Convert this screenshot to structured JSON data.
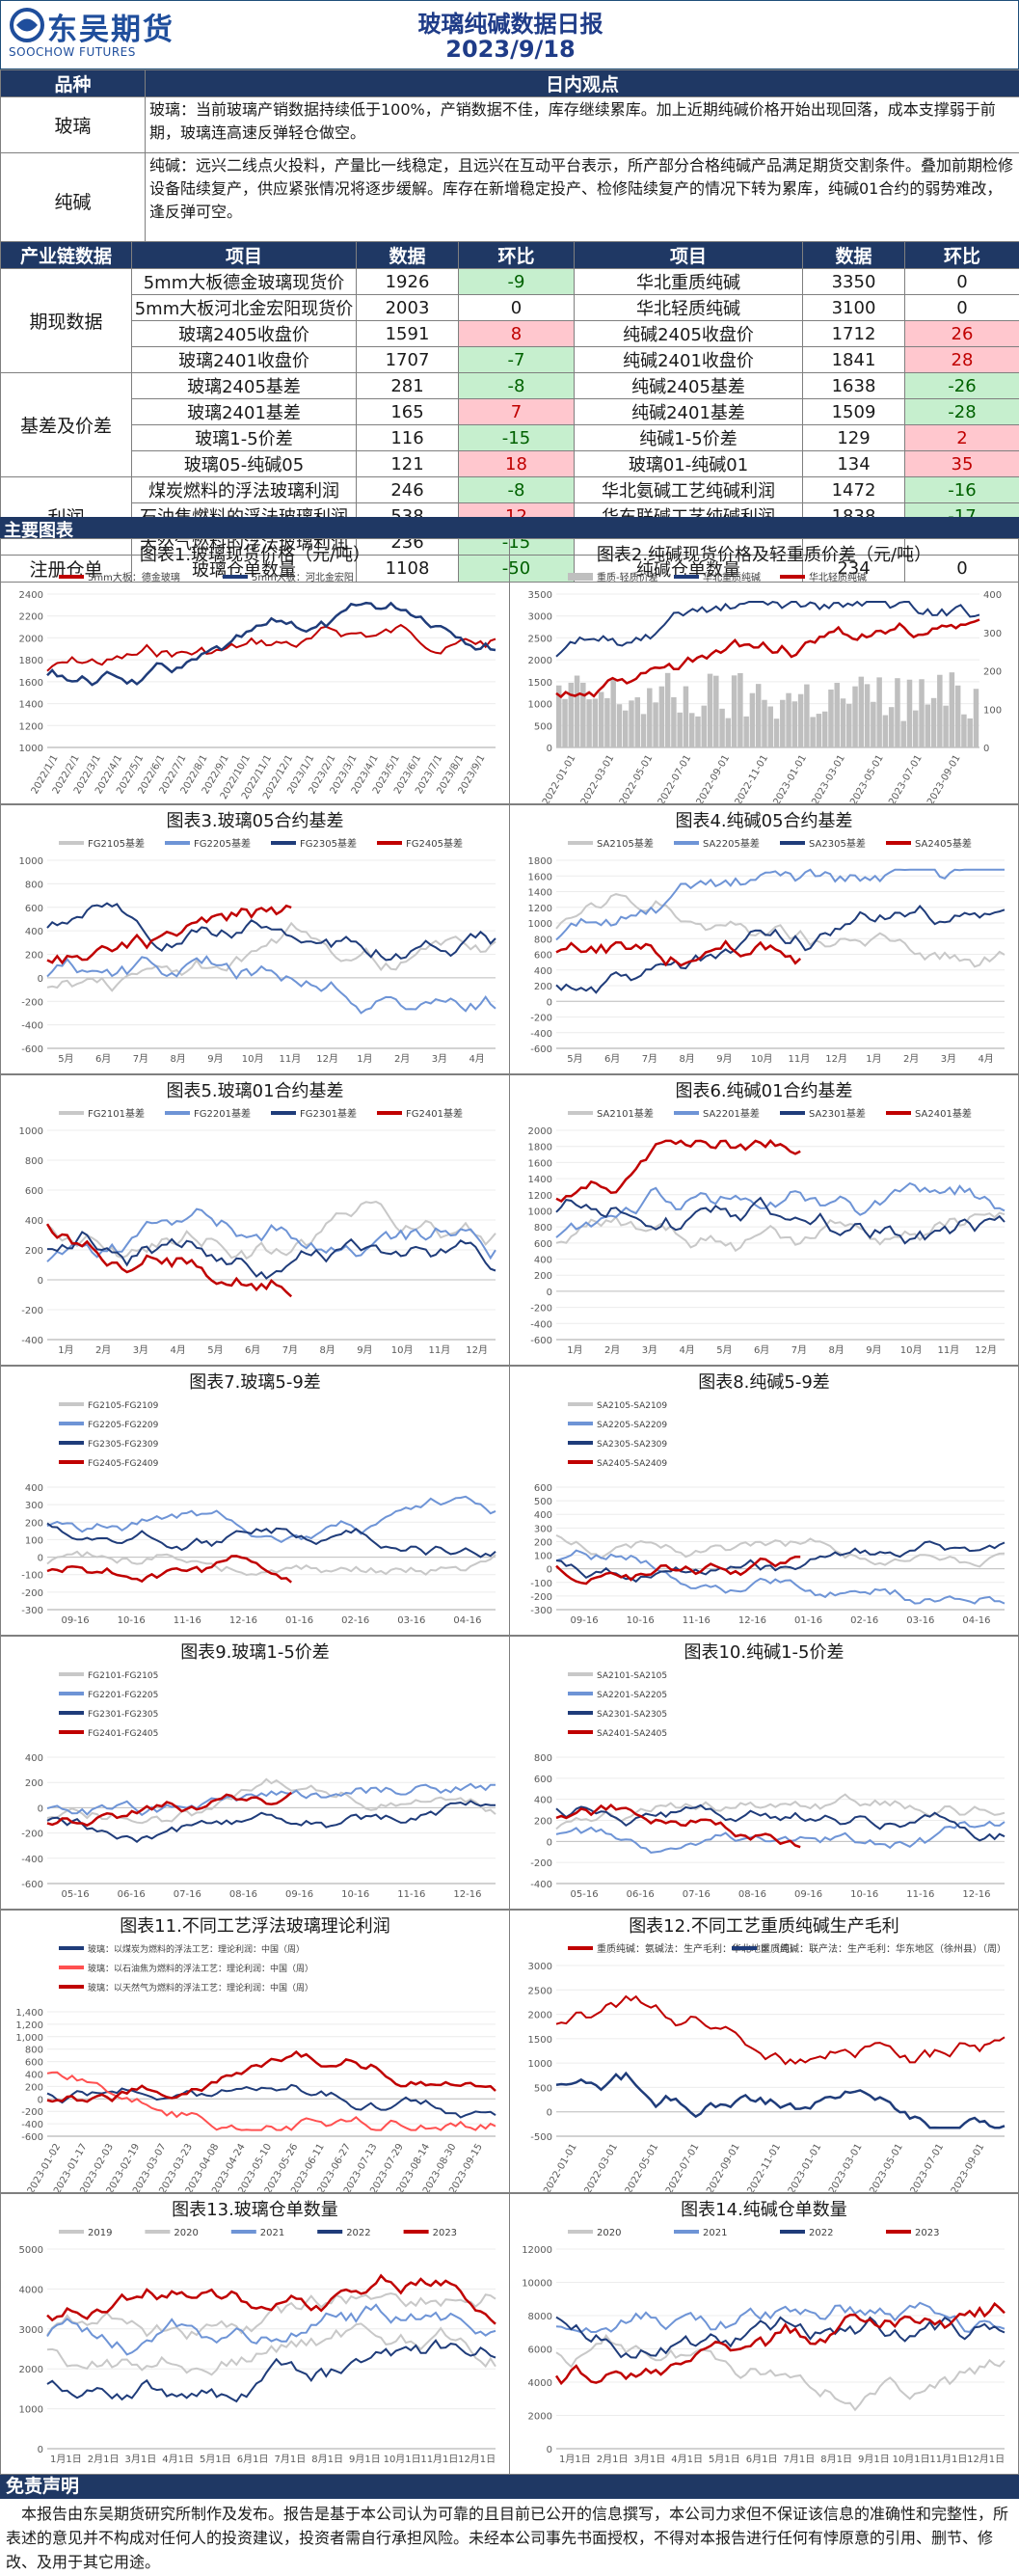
{
  "header": {
    "logo_cn": "东吴期货",
    "logo_en": "SOOCHOW FUTURES",
    "title": "玻璃纯碱数据日报",
    "date": "2023/9/18",
    "logo_color": "#1f4e9c",
    "title_color": "#1f3c88"
  },
  "views": {
    "col_product": "品种",
    "col_view": "日内观点",
    "glass_label": "玻璃",
    "glass_text": "玻璃：当前玻璃产销数据持续低于100%，产销数据不佳，库存继续累库。加上近期纯碱价格开始出现回落，成本支撑弱于前期，玻璃连高速反弹轻仓做空。",
    "soda_label": "纯碱",
    "soda_text": "纯碱：远兴二线点火投料，产量比一线稳定，且远兴在互动平台表示，所产部分合格纯碱产品满足期货交割条件。叠加前期检修设备陆续复产，供应紧张情况将逐步缓解。库存在新增稳定投产、检修陆续复产的情况下转为累库，纯碱01合约的弱势难改，逢反弹可空。"
  },
  "metrics": {
    "headers": [
      "产业链数据",
      "项目",
      "数据",
      "环比",
      "项目",
      "数据",
      "环比"
    ],
    "groups": [
      {
        "name": "期现数据",
        "rows": [
          {
            "l": "5mm大板德金玻璃现货价",
            "lv": "1926",
            "lc": "-9",
            "lcc": "g",
            "r": "华北重质纯碱",
            "rv": "3350",
            "rc": "0",
            "rcc": ""
          },
          {
            "l": "5mm大板河北金宏阳现货价",
            "lv": "2003",
            "lc": "0",
            "lcc": "",
            "r": "华北轻质纯碱",
            "rv": "3100",
            "rc": "0",
            "rcc": ""
          },
          {
            "l": "玻璃2405收盘价",
            "lv": "1591",
            "lc": "8",
            "lcc": "r",
            "r": "纯碱2405收盘价",
            "rv": "1712",
            "rc": "26",
            "rcc": "r"
          },
          {
            "l": "玻璃2401收盘价",
            "lv": "1707",
            "lc": "-7",
            "lcc": "g",
            "r": "纯碱2401收盘价",
            "rv": "1841",
            "rc": "28",
            "rcc": "r"
          }
        ]
      },
      {
        "name": "基差及价差",
        "rows": [
          {
            "l": "玻璃2405基差",
            "lv": "281",
            "lc": "-8",
            "lcc": "g",
            "r": "纯碱2405基差",
            "rv": "1638",
            "rc": "-26",
            "rcc": "g"
          },
          {
            "l": "玻璃2401基差",
            "lv": "165",
            "lc": "7",
            "lcc": "r",
            "r": "纯碱2401基差",
            "rv": "1509",
            "rc": "-28",
            "rcc": "g"
          },
          {
            "l": "玻璃1-5价差",
            "lv": "116",
            "lc": "-15",
            "lcc": "g",
            "r": "纯碱1-5价差",
            "rv": "129",
            "rc": "2",
            "rcc": "r"
          },
          {
            "l": "玻璃05-纯碱05",
            "lv": "121",
            "lc": "18",
            "lcc": "r",
            "r": "玻璃01-纯碱01",
            "rv": "134",
            "rc": "35",
            "rcc": "r"
          }
        ]
      },
      {
        "name": "利润",
        "rows": [
          {
            "l": "煤炭燃料的浮法玻璃利润",
            "lv": "246",
            "lc": "-8",
            "lcc": "g",
            "r": "华北氨碱工艺纯碱利润",
            "rv": "1472",
            "rc": "-16",
            "rcc": "g"
          },
          {
            "l": "石油焦燃料的浮法玻璃利润",
            "lv": "538",
            "lc": "12",
            "lcc": "r",
            "r": "华东联碱工艺纯碱利润",
            "rv": "1838",
            "rc": "-17",
            "rcc": "g"
          },
          {
            "l": "天然气燃料的浮法玻璃利润",
            "lv": "236",
            "lc": "-15",
            "lcc": "g",
            "r": "",
            "rv": "",
            "rc": "",
            "rcc": ""
          }
        ]
      },
      {
        "name": "注册仓单",
        "rows": [
          {
            "l": "玻璃仓单数量",
            "lv": "1108",
            "lc": "-50",
            "lcc": "g",
            "r": "纯碱仓单数量",
            "rv": "234",
            "rc": "0",
            "rcc": ""
          }
        ]
      }
    ]
  },
  "section_charts": "主要图表",
  "charts": [
    {
      "title": "图表1.玻璃现货价格（元/吨）",
      "legend": [
        "5mm大板：德金玻璃",
        "5mm大板：河北金宏阳"
      ],
      "colors": [
        "#c00000",
        "#1f3c7a"
      ],
      "yticks": [
        "2400",
        "2200",
        "2000",
        "1800",
        "1600",
        "1400",
        "1200",
        "1000"
      ],
      "xticks": [
        "2022/1/1",
        "2022/2/1",
        "2022/3/1",
        "2022/4/1",
        "2022/5/1",
        "2022/6/1",
        "2022/7/1",
        "2022/8/1",
        "2022/9/1",
        "2022/10/1",
        "2022/11/1",
        "2022/12/1",
        "2023/1/1",
        "2023/2/1",
        "2023/3/1",
        "2023/4/1",
        "2023/5/1",
        "2023/6/1",
        "2023/7/1",
        "2023/8/1",
        "2023/9/1"
      ]
    },
    {
      "title": "图表2.纯碱现货价格及轻重质价差（元/吨）",
      "legend": [
        "重质-轻质价差",
        "华北重质纯碱",
        "华北轻质纯碱"
      ],
      "colors": [
        "#bfbfbf",
        "#1f3c7a",
        "#c00000"
      ],
      "yticks": [
        "3500",
        "3000",
        "2500",
        "2000",
        "1500",
        "1000",
        "500",
        "0"
      ],
      "y2ticks": [
        "400",
        "300",
        "200",
        "100",
        "0"
      ],
      "xticks": [
        "2022-01-01",
        "2022-03-01",
        "2022-05-01",
        "2022-07-01",
        "2022-09-01",
        "2022-11-01",
        "2023-01-01",
        "2023-03-01",
        "2023-05-01",
        "2023-07-01",
        "2023-09-01"
      ]
    },
    {
      "title": "图表3.玻璃05合约基差",
      "legend": [
        "FG2105基差",
        "FG2205基差",
        "FG2305基差",
        "FG2405基差"
      ],
      "colors": [
        "#c8c8c8",
        "#6e94d6",
        "#1f3c7a",
        "#c00000"
      ],
      "yticks": [
        "1000",
        "800",
        "600",
        "400",
        "200",
        "0",
        "-200",
        "-400",
        "-600"
      ],
      "xticks": [
        "5月",
        "6月",
        "7月",
        "8月",
        "9月",
        "10月",
        "11月",
        "12月",
        "1月",
        "2月",
        "3月",
        "4月"
      ]
    },
    {
      "title": "图表4.纯碱05合约基差",
      "legend": [
        "SA2105基差",
        "SA2205基差",
        "SA2305基差",
        "SA2405基差"
      ],
      "colors": [
        "#c8c8c8",
        "#6e94d6",
        "#1f3c7a",
        "#c00000"
      ],
      "yticks": [
        "1800",
        "1600",
        "1400",
        "1200",
        "1000",
        "800",
        "600",
        "400",
        "200",
        "0",
        "-200",
        "-400",
        "-600"
      ],
      "xticks": [
        "5月",
        "6月",
        "7月",
        "8月",
        "9月",
        "10月",
        "11月",
        "12月",
        "1月",
        "2月",
        "3月",
        "4月"
      ]
    },
    {
      "title": "图表5.玻璃01合约基差",
      "legend": [
        "FG2101基差",
        "FG2201基差",
        "FG2301基差",
        "FG2401基差"
      ],
      "colors": [
        "#c8c8c8",
        "#6e94d6",
        "#1f3c7a",
        "#c00000"
      ],
      "yticks": [
        "1000",
        "800",
        "600",
        "400",
        "200",
        "0",
        "-200",
        "-400"
      ],
      "xticks": [
        "1月",
        "2月",
        "3月",
        "4月",
        "5月",
        "6月",
        "7月",
        "8月",
        "9月",
        "10月",
        "11月",
        "12月"
      ]
    },
    {
      "title": "图表6.纯碱01合约基差",
      "legend": [
        "SA2101基差",
        "SA2201基差",
        "SA2301基差",
        "SA2401基差"
      ],
      "colors": [
        "#c8c8c8",
        "#6e94d6",
        "#1f3c7a",
        "#c00000"
      ],
      "yticks": [
        "2000",
        "1800",
        "1600",
        "1400",
        "1200",
        "1000",
        "800",
        "600",
        "400",
        "200",
        "0",
        "-200",
        "-400",
        "-600"
      ],
      "xticks": [
        "1月",
        "2月",
        "3月",
        "4月",
        "5月",
        "6月",
        "7月",
        "8月",
        "9月",
        "10月",
        "11月",
        "12月"
      ]
    },
    {
      "title": "图表7.玻璃5-9差",
      "legend": [
        "FG2105-FG2109",
        "FG2205-FG2209",
        "FG2305-FG2309",
        "FG2405-FG2409"
      ],
      "colors": [
        "#c8c8c8",
        "#6e94d6",
        "#1f3c7a",
        "#c00000"
      ],
      "yticks": [
        "400",
        "300",
        "200",
        "100",
        "0",
        "-100",
        "-200",
        "-300"
      ],
      "xticks": [
        "09-16",
        "10-16",
        "11-16",
        "12-16",
        "01-16",
        "02-16",
        "03-16",
        "04-16"
      ]
    },
    {
      "title": "图表8.纯碱5-9差",
      "legend": [
        "SA2105-SA2109",
        "SA2205-SA2209",
        "SA2305-SA2309",
        "SA2405-SA2409"
      ],
      "colors": [
        "#c8c8c8",
        "#6e94d6",
        "#1f3c7a",
        "#c00000"
      ],
      "yticks": [
        "600",
        "500",
        "400",
        "300",
        "200",
        "100",
        "0",
        "-100",
        "-200",
        "-300"
      ],
      "xticks": [
        "09-16",
        "10-16",
        "11-16",
        "12-16",
        "01-16",
        "02-16",
        "03-16",
        "04-16"
      ]
    },
    {
      "title": "图表9.玻璃1-5价差",
      "legend": [
        "FG2101-FG2105",
        "FG2201-FG2205",
        "FG2301-FG2305",
        "FG2401-FG2405"
      ],
      "colors": [
        "#c8c8c8",
        "#6e94d6",
        "#1f3c7a",
        "#c00000"
      ],
      "yticks": [
        "400",
        "200",
        "0",
        "-200",
        "-400",
        "-600"
      ],
      "xticks": [
        "05-16",
        "06-16",
        "07-16",
        "08-16",
        "09-16",
        "10-16",
        "11-16",
        "12-16"
      ]
    },
    {
      "title": "图表10.纯碱1-5价差",
      "legend": [
        "SA2101-SA2105",
        "SA2201-SA2205",
        "SA2301-SA2305",
        "SA2401-SA2405"
      ],
      "colors": [
        "#c8c8c8",
        "#6e94d6",
        "#1f3c7a",
        "#c00000"
      ],
      "yticks": [
        "800",
        "600",
        "400",
        "200",
        "0",
        "-200",
        "-400"
      ],
      "xticks": [
        "05-16",
        "06-16",
        "07-16",
        "08-16",
        "09-16",
        "10-16",
        "11-16",
        "12-16"
      ]
    },
    {
      "title": "图表11.不同工艺浮法玻璃理论利润",
      "legend": [
        "玻璃：以煤炭为燃料的浮法工艺：理论利润：中国（周）",
        "玻璃：以石油焦为燃料的浮法工艺：理论利润：中国（周）",
        "玻璃：以天然气为燃料的浮法工艺：理论利润：中国（周）"
      ],
      "colors": [
        "#1f3c7a",
        "#ff5050",
        "#c00000"
      ],
      "yticks": [
        "1,400",
        "1,200",
        "1,000",
        "800",
        "600",
        "400",
        "200",
        "0",
        "-200",
        "-400",
        "-600"
      ],
      "xticks": [
        "2023-01-02",
        "2023-01-17",
        "2023-02-03",
        "2023-02-19",
        "2023-03-07",
        "2023-03-23",
        "2023-04-08",
        "2023-04-24",
        "2023-05-10",
        "2023-05-26",
        "2023-06-11",
        "2023-06-27",
        "2023-07-13",
        "2023-07-29",
        "2023-08-14",
        "2023-08-30",
        "2023-09-15"
      ]
    },
    {
      "title": "图表12.不同工艺重质纯碱生产毛利",
      "legend": [
        "重质纯碱：氨碱法：生产毛利：华北地区（周）",
        "重质纯碱：联产法：生产毛利：华东地区（徐州县）（周）"
      ],
      "colors": [
        "#c00000",
        "#1f3c7a"
      ],
      "yticks": [
        "3000",
        "2500",
        "2000",
        "1500",
        "1000",
        "500",
        "0",
        "-500"
      ],
      "xticks": [
        "2022-01-01",
        "2022-03-01",
        "2022-05-01",
        "2022-07-01",
        "2022-09-01",
        "2022-11-01",
        "2023-01-01",
        "2023-03-01",
        "2023-05-01",
        "2023-07-01",
        "2023-09-01"
      ]
    },
    {
      "title": "图表13.玻璃仓单数量",
      "legend": [
        "2019",
        "2020",
        "2021",
        "2022",
        "2023"
      ],
      "colors": [
        "#c8c8c8",
        "#c8c8c8",
        "#6e94d6",
        "#1f3c7a",
        "#c00000"
      ],
      "yticks": [
        "5000",
        "4000",
        "3000",
        "2000",
        "1000",
        "0"
      ],
      "xticks": [
        "1月1日",
        "2月1日",
        "3月1日",
        "4月1日",
        "5月1日",
        "6月1日",
        "7月1日",
        "8月1日",
        "9月1日",
        "10月1日",
        "11月1日",
        "12月1日"
      ]
    },
    {
      "title": "图表14.纯碱仓单数量",
      "legend": [
        "2020",
        "2021",
        "2022",
        "2023"
      ],
      "colors": [
        "#c8c8c8",
        "#6e94d6",
        "#1f3c7a",
        "#c00000"
      ],
      "yticks": [
        "12000",
        "10000",
        "8000",
        "6000",
        "4000",
        "2000",
        "0"
      ],
      "xticks": [
        "1月1日",
        "2月1日",
        "3月1日",
        "4月1日",
        "5月1日",
        "6月1日",
        "7月1日",
        "8月1日",
        "9月1日",
        "10月1日",
        "11月1日",
        "12月1日"
      ]
    }
  ],
  "disclaimer": {
    "title": "免责声明",
    "text": "本报告由东吴期货研究所制作及发布。报告是基于本公司认为可靠的且目前已公开的信息撰写，本公司力求但不保证该信息的准确性和完整性，所表述的意见并不构成对任何人的投资建议，投资者需自行承担风险。未经本公司事先书面授权，不得对本报告进行任何有悖原意的引用、删节、修改、及用于其它用途。"
  }
}
